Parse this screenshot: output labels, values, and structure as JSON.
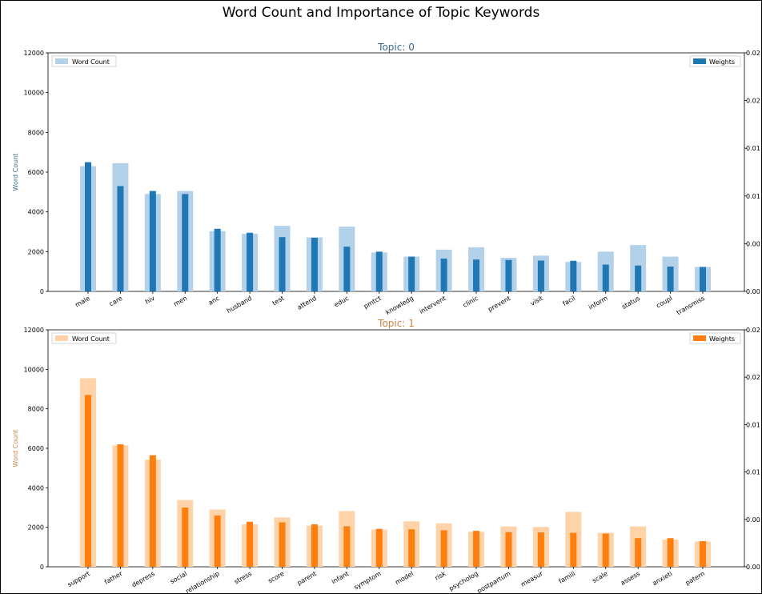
{
  "suptitle": "Word Count and Importance of Topic Keywords",
  "chart_data": [
    {
      "type": "bar",
      "title": "Topic: 0",
      "ylabel": "Word Count",
      "ylim": [
        0,
        12000
      ],
      "y_ticks": [
        0,
        2000,
        4000,
        6000,
        8000,
        10000,
        12000
      ],
      "y2_tick_labels": [
        "0.00",
        "0.00",
        "0.01",
        "0.01",
        "0.02",
        "0.02"
      ],
      "colors": {
        "count": "#b4d1ea",
        "weight": "#1f77b4",
        "title": "#3a6a8e"
      },
      "legend": {
        "count_label": "Word Count",
        "weight_label": "Weights",
        "count_position": "top-left",
        "weight_position": "top-right"
      },
      "categories": [
        "male",
        "care",
        "hiv",
        "men",
        "anc",
        "husband",
        "test",
        "attend",
        "educ",
        "pmtct",
        "knowledg",
        "intervent",
        "clinic",
        "prevent",
        "visit",
        "facil",
        "inform",
        "status",
        "coupl",
        "transmiss"
      ],
      "series": [
        {
          "name": "Word Count",
          "axis": "left",
          "values": [
            6300,
            6450,
            4900,
            5050,
            3030,
            2900,
            3300,
            2720,
            3260,
            1960,
            1750,
            2100,
            2220,
            1690,
            1800,
            1480,
            2000,
            2330,
            1750,
            1230
          ]
        },
        {
          "name": "Weights",
          "axis": "right",
          "values": [
            6500,
            5300,
            5050,
            4900,
            3150,
            2950,
            2730,
            2700,
            2250,
            2000,
            1750,
            1650,
            1600,
            1580,
            1550,
            1540,
            1350,
            1300,
            1250,
            1230
          ]
        }
      ]
    },
    {
      "type": "bar",
      "title": "Topic: 1",
      "ylabel": "Word Count",
      "ylim": [
        0,
        12000
      ],
      "y_ticks": [
        0,
        2000,
        4000,
        6000,
        8000,
        10000,
        12000
      ],
      "y2_tick_labels": [
        "0.00",
        "0.00",
        "0.01",
        "0.01",
        "0.02",
        "0.02"
      ],
      "colors": {
        "count": "#ffd2a8",
        "weight": "#ff7f0e",
        "title": "#c88543"
      },
      "legend": {
        "count_label": "Word Count",
        "weight_label": "Weights",
        "count_position": "top-left",
        "weight_position": "top-right"
      },
      "categories": [
        "support",
        "father",
        "depress",
        "social",
        "relationship",
        "stress",
        "score",
        "parent",
        "infant",
        "symptom",
        "model",
        "risk",
        "psycholog",
        "postpartum",
        "measur",
        "famili",
        "scale",
        "assess",
        "anxieti",
        "patern"
      ],
      "series": [
        {
          "name": "Word Count",
          "axis": "left",
          "values": [
            9550,
            6150,
            5420,
            3380,
            2900,
            2150,
            2500,
            2080,
            2820,
            1880,
            2300,
            2200,
            1770,
            2040,
            2020,
            2780,
            1720,
            2040,
            1380,
            1280
          ]
        },
        {
          "name": "Weights",
          "axis": "right",
          "values": [
            8700,
            6200,
            5650,
            3000,
            2600,
            2280,
            2250,
            2150,
            2050,
            1920,
            1900,
            1850,
            1820,
            1750,
            1740,
            1720,
            1680,
            1450,
            1450,
            1300
          ]
        }
      ]
    }
  ]
}
